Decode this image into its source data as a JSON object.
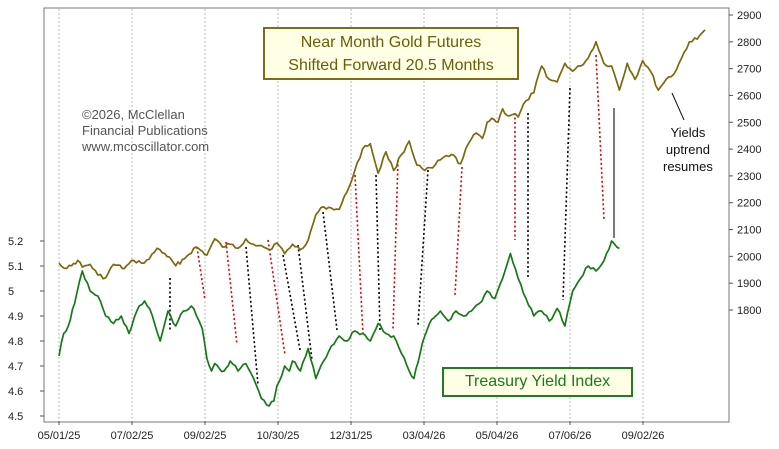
{
  "chart_data": {
    "type": "line",
    "title_lines": [
      "Near Month Gold Futures",
      "Shifted Forward 20.5 Months"
    ],
    "yield_label": "Treasury Yield Index",
    "copyright": [
      "©2026, McClellan",
      "Financial Publications",
      "www.mcoscillator.com"
    ],
    "annotation": [
      "Yields",
      "uptrend",
      "resumes"
    ],
    "x_ticks": [
      "05/01/25",
      "07/02/25",
      "09/02/25",
      "10/30/25",
      "12/31/25",
      "03/04/26",
      "05/04/26",
      "07/06/26",
      "09/02/26"
    ],
    "left_axis": {
      "ticks": [
        "5.2",
        "5.1",
        "5",
        "4.9",
        "4.8",
        "4.7",
        "4.6",
        "4.5"
      ],
      "values": [
        5.2,
        5.1,
        5.0,
        4.9,
        4.8,
        4.7,
        4.6,
        4.5
      ],
      "range": [
        4.5,
        5.2
      ]
    },
    "right_axis": {
      "ticks": [
        "2900",
        "2800",
        "2700",
        "2600",
        "2500",
        "2400",
        "2300",
        "2200",
        "2100",
        "2000",
        "1900",
        "1800"
      ],
      "values": [
        2900,
        2800,
        2700,
        2600,
        2500,
        2400,
        2300,
        2200,
        2100,
        2000,
        1900,
        1800
      ],
      "range": [
        1700,
        2900
      ]
    },
    "grid": "vertical dashed",
    "series": [
      {
        "name": "Near Month Gold Futures Shifted Forward 20.5 Months",
        "axis": "right",
        "color": "#7a6a0a",
        "x_index": [
          0,
          5,
          8,
          12,
          15,
          20,
          25,
          30,
          35,
          42,
          48,
          53,
          58,
          63,
          68,
          75,
          82,
          88,
          95,
          100,
          105,
          110,
          115,
          120,
          125,
          128,
          130,
          135,
          140,
          145,
          150,
          155,
          160,
          165,
          170,
          175,
          180,
          185,
          190,
          195,
          200,
          205,
          210,
          215,
          220,
          225,
          230,
          235,
          240,
          245,
          252,
          258,
          263,
          268,
          272,
          275,
          278,
          282,
          285,
          288,
          292,
          295,
          300,
          305,
          310,
          315,
          320,
          325,
          330,
          335,
          340,
          345,
          350,
          355,
          360,
          365,
          370,
          375,
          380,
          385,
          390,
          395,
          400,
          405,
          410,
          415
        ],
        "values": [
          1975,
          1955,
          1965,
          1985,
          1960,
          1970,
          1930,
          1920,
          1970,
          1955,
          1985,
          1975,
          1990,
          2030,
          2010,
          1965,
          2000,
          2035,
          2005,
          2065,
          2035,
          2045,
          2030,
          2065,
          2045,
          2040,
          2040,
          2025,
          2050,
          2010,
          2045,
          2025,
          2060,
          2155,
          2185,
          2180,
          2175,
          2240,
          2320,
          2400,
          2420,
          2310,
          2390,
          2320,
          2380,
          2430,
          2340,
          2320,
          2330,
          2360,
          2380,
          2345,
          2420,
          2460,
          2440,
          2500,
          2515,
          2500,
          2550,
          2525,
          2530,
          2520,
          2580,
          2610,
          2710,
          2660,
          2650,
          2720,
          2690,
          2710,
          2740,
          2800,
          2720,
          2710,
          2620,
          2720,
          2660,
          2730,
          2690,
          2620,
          2660,
          2680,
          2740,
          2800,
          2810,
          2845
        ]
      },
      {
        "name": "Treasury Yield Index",
        "axis": "left",
        "color": "#157a15",
        "x_index": [
          0,
          3,
          6,
          10,
          15,
          20,
          25,
          30,
          35,
          40,
          45,
          50,
          55,
          60,
          65,
          70,
          75,
          80,
          85,
          90,
          92,
          95,
          98,
          100,
          103,
          106,
          110,
          115,
          120,
          125,
          130,
          135,
          138,
          140,
          143,
          145,
          148,
          150,
          155,
          160,
          165,
          170,
          175,
          180,
          185,
          190,
          195,
          200,
          205,
          210,
          215,
          220,
          225,
          228,
          232,
          235,
          238,
          242,
          245,
          250,
          255,
          260,
          265,
          270,
          275,
          280,
          285,
          290,
          295,
          300,
          305,
          310,
          315,
          320,
          325,
          330,
          335,
          340,
          345,
          350,
          355,
          360
        ],
        "values": [
          4.74,
          4.83,
          4.86,
          4.95,
          5.08,
          5.0,
          4.98,
          4.9,
          4.87,
          4.9,
          4.83,
          4.92,
          4.96,
          4.9,
          4.8,
          4.92,
          4.86,
          4.92,
          4.94,
          4.88,
          4.85,
          4.73,
          4.68,
          4.71,
          4.69,
          4.68,
          4.72,
          4.68,
          4.71,
          4.65,
          4.57,
          4.54,
          4.56,
          4.62,
          4.66,
          4.7,
          4.68,
          4.72,
          4.68,
          4.77,
          4.65,
          4.72,
          4.78,
          4.82,
          4.8,
          4.84,
          4.83,
          4.8,
          4.87,
          4.83,
          4.82,
          4.75,
          4.68,
          4.65,
          4.75,
          4.82,
          4.87,
          4.9,
          4.92,
          4.88,
          4.92,
          4.9,
          4.92,
          4.95,
          5.0,
          4.97,
          5.05,
          5.15,
          5.05,
          4.97,
          4.9,
          4.92,
          4.88,
          4.93,
          4.86,
          5.0,
          5.05,
          5.1,
          5.08,
          5.12,
          5.2,
          5.17
        ]
      }
    ]
  }
}
